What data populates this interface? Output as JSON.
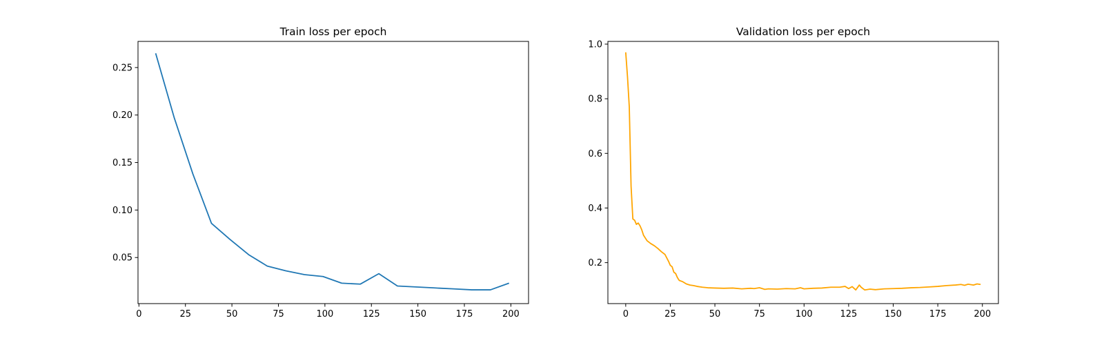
{
  "chart_data": [
    {
      "type": "line",
      "title": "Train loss per epoch",
      "xlabel": "",
      "ylabel": "",
      "xlim": [
        -0.5,
        209.5
      ],
      "ylim": [
        0.0015,
        0.2775
      ],
      "xticks": [
        0,
        25,
        50,
        75,
        100,
        125,
        150,
        175,
        200
      ],
      "yticks": [
        0.05,
        0.1,
        0.15,
        0.2,
        0.25
      ],
      "ytick_labels": [
        "0.05",
        "0.10",
        "0.15",
        "0.20",
        "0.25"
      ],
      "grid": false,
      "series": [
        {
          "color": "#1f77b4",
          "x": [
            9,
            19,
            29,
            39,
            49,
            59,
            69,
            79,
            89,
            99,
            109,
            119,
            129,
            139,
            149,
            159,
            169,
            179,
            189,
            199
          ],
          "y": [
            0.265,
            0.197,
            0.138,
            0.086,
            0.069,
            0.053,
            0.041,
            0.036,
            0.032,
            0.03,
            0.023,
            0.022,
            0.033,
            0.02,
            0.019,
            0.018,
            0.017,
            0.016,
            0.016,
            0.023
          ]
        }
      ]
    },
    {
      "type": "line",
      "title": "Validation loss per epoch",
      "xlabel": "",
      "ylabel": "",
      "xlim": [
        -10,
        209
      ],
      "ylim": [
        0.05,
        1.01
      ],
      "xticks": [
        0,
        25,
        50,
        75,
        100,
        125,
        150,
        175,
        200
      ],
      "yticks": [
        0.2,
        0.4,
        0.6,
        0.8,
        1.0
      ],
      "ytick_labels": [
        "0.2",
        "0.4",
        "0.6",
        "0.8",
        "1.0"
      ],
      "grid": false,
      "series": [
        {
          "color": "#ffa500",
          "x": [
            0,
            1,
            2,
            3,
            4,
            5,
            6,
            7,
            8,
            9,
            10,
            12,
            14,
            16,
            18,
            20,
            22,
            24,
            25,
            26,
            27,
            28,
            29,
            30,
            32,
            34,
            36,
            38,
            40,
            43,
            46,
            50,
            55,
            60,
            65,
            70,
            72,
            75,
            78,
            80,
            85,
            90,
            95,
            98,
            100,
            105,
            110,
            115,
            120,
            123,
            125,
            127,
            129,
            131,
            132,
            134,
            137,
            140,
            145,
            150,
            155,
            160,
            165,
            170,
            175,
            180,
            185,
            188,
            190,
            192,
            195,
            197,
            199
          ],
          "y": [
            0.97,
            0.88,
            0.77,
            0.48,
            0.36,
            0.355,
            0.34,
            0.345,
            0.335,
            0.32,
            0.3,
            0.28,
            0.27,
            0.262,
            0.252,
            0.24,
            0.23,
            0.205,
            0.19,
            0.185,
            0.165,
            0.16,
            0.145,
            0.135,
            0.13,
            0.122,
            0.118,
            0.116,
            0.113,
            0.11,
            0.108,
            0.107,
            0.106,
            0.107,
            0.104,
            0.106,
            0.105,
            0.108,
            0.102,
            0.104,
            0.103,
            0.105,
            0.104,
            0.108,
            0.104,
            0.106,
            0.107,
            0.11,
            0.11,
            0.113,
            0.105,
            0.112,
            0.1,
            0.118,
            0.11,
            0.1,
            0.103,
            0.101,
            0.104,
            0.105,
            0.106,
            0.108,
            0.109,
            0.111,
            0.113,
            0.116,
            0.118,
            0.12,
            0.117,
            0.121,
            0.118,
            0.122,
            0.12
          ]
        }
      ]
    }
  ]
}
